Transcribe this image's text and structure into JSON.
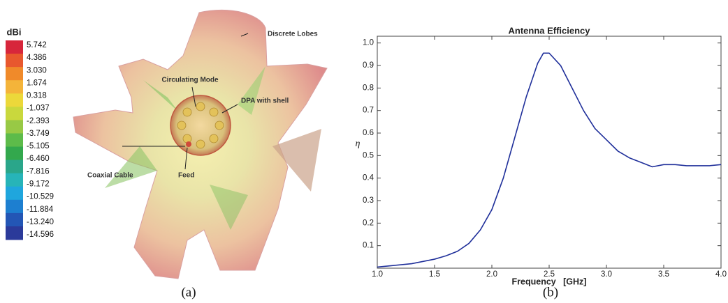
{
  "figure_a": {
    "colorbar": {
      "title": "dBi",
      "ticks": [
        5.742,
        4.386,
        {
          "value": 3.03,
          "label": "3.030"
        },
        1.674,
        0.318,
        -1.037,
        -2.393,
        -3.749,
        -5.105,
        {
          "value": -6.46,
          "label": "-6.460"
        },
        -7.816,
        -9.172,
        -10.529,
        -11.884,
        {
          "value": -13.24,
          "label": "-13.240"
        },
        -14.596
      ]
    },
    "annotations": [
      "Discrete Lobes",
      "Circulating Mode",
      "DPA with shell",
      "Coaxial Cable",
      "Feed"
    ],
    "caption": "(a)"
  },
  "chart_data": {
    "type": "line",
    "title": "Antenna Efficiency",
    "x_label": "Frequency   [GHz]",
    "y_label": "η",
    "color": "#1f2f9a",
    "x": [
      1.0,
      1.1,
      1.2,
      1.3,
      1.4,
      1.5,
      1.6,
      1.7,
      1.8,
      1.9,
      2.0,
      2.1,
      2.2,
      2.3,
      2.4,
      2.45,
      2.5,
      2.6,
      2.7,
      2.8,
      2.9,
      3.0,
      3.1,
      3.2,
      3.3,
      3.4,
      3.5,
      3.6,
      3.7,
      3.8,
      3.9,
      4.0
    ],
    "values": [
      0.005,
      0.01,
      0.015,
      0.02,
      0.03,
      0.04,
      0.055,
      0.075,
      0.11,
      0.17,
      0.26,
      0.4,
      0.58,
      0.76,
      0.91,
      0.955,
      0.955,
      0.9,
      0.8,
      0.7,
      0.62,
      0.57,
      0.52,
      0.49,
      0.47,
      0.45,
      0.46,
      0.46,
      0.455,
      0.455,
      0.455,
      0.46
    ],
    "xlim": [
      1,
      4
    ],
    "ylim": [
      0,
      1.03
    ],
    "xticks": [
      {
        "value": 1,
        "label": "1.0"
      },
      1.5,
      {
        "value": 2,
        "label": "2.0"
      },
      2.5,
      {
        "value": 3,
        "label": "3.0"
      },
      3.5,
      {
        "value": 4,
        "label": "4.0"
      }
    ],
    "yticks": [
      0.1,
      0.2,
      0.3,
      0.4,
      0.5,
      0.6,
      0.7,
      0.8,
      0.9,
      {
        "value": 1,
        "label": "1.0"
      }
    ],
    "grid": false
  },
  "caption_b": "(b)"
}
